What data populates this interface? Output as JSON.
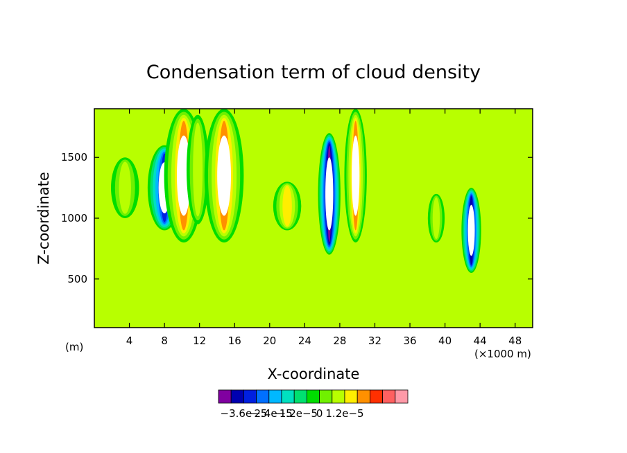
{
  "chart_data": {
    "type": "heatmap",
    "title": "Condensation term of cloud density",
    "xlabel": "X-coordinate",
    "ylabel": "Z-coordinate",
    "x_unit_left": "(m)",
    "x_unit_right": "(×1000 m)",
    "xlim": [
      0,
      50
    ],
    "ylim": [
      100,
      1900
    ],
    "x_ticks": [
      "4",
      "8",
      "12",
      "16",
      "20",
      "24",
      "28",
      "32",
      "36",
      "40",
      "44",
      "48"
    ],
    "y_ticks": [
      "500",
      "1000",
      "1500"
    ],
    "colorbar": {
      "levels": [
        -4.2e-05,
        -3.6e-05,
        -3e-05,
        -2.4e-05,
        -1.8e-05,
        -1.2e-05,
        -6e-06,
        0,
        6e-06,
        1.2e-05,
        1.8e-05
      ],
      "colors": [
        "#8000a0",
        "#0000b0",
        "#0020e0",
        "#0070ff",
        "#00b8ff",
        "#00e0c0",
        "#00e070",
        "#00dd00",
        "#70f000",
        "#b8ff00",
        "#ffee00",
        "#ff9000",
        "#ff3000",
        "#ff6060",
        "#ff9aa8"
      ],
      "tick_labels": [
        "−3.6e−5",
        "−2.4e−5",
        "−1.2e−5",
        "0",
        "1.2e−5"
      ]
    },
    "fields": [
      {
        "x": 3.5,
        "z": 1250,
        "w": 1.0,
        "h": 500,
        "value": 1.2e-05
      },
      {
        "x": 8.0,
        "z": 1250,
        "w": 1.2,
        "h": 700,
        "value": -3e-05
      },
      {
        "x": 10.2,
        "z": 1350,
        "w": 1.4,
        "h": 1100,
        "value": 3e-05
      },
      {
        "x": 11.8,
        "z": 1400,
        "w": 0.8,
        "h": 900,
        "value": 1e-05
      },
      {
        "x": 14.8,
        "z": 1350,
        "w": 1.4,
        "h": 1100,
        "value": 3e-05
      },
      {
        "x": 22.0,
        "z": 1100,
        "w": 1.0,
        "h": 400,
        "value": 1.5e-05
      },
      {
        "x": 26.8,
        "z": 1200,
        "w": 0.8,
        "h": 1000,
        "value": -5e-05
      },
      {
        "x": 29.8,
        "z": 1350,
        "w": 0.8,
        "h": 1100,
        "value": 3e-05
      },
      {
        "x": 39.0,
        "z": 1000,
        "w": 0.6,
        "h": 400,
        "value": 1e-05
      },
      {
        "x": 43.0,
        "z": 900,
        "w": 0.7,
        "h": 700,
        "value": -4e-05
      }
    ]
  }
}
